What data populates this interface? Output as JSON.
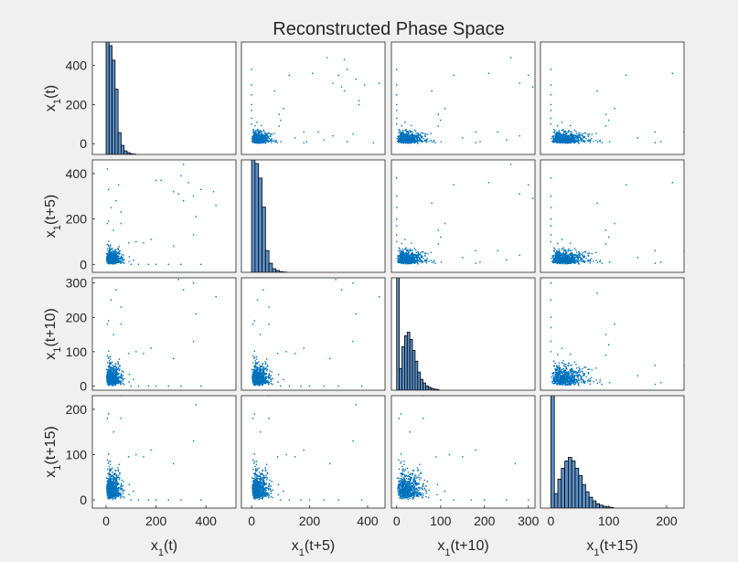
{
  "chart_data": {
    "type": "scatter-matrix",
    "title": "Reconstructed Phase Space",
    "variables": [
      {
        "base": "x",
        "sub": "1",
        "suffix": "(t)"
      },
      {
        "base": "x",
        "sub": "1",
        "suffix": "(t+5)"
      },
      {
        "base": "x",
        "sub": "1",
        "suffix": "(t+10)"
      },
      {
        "base": "x",
        "sub": "1",
        "suffix": "(t+15)"
      }
    ],
    "ranges": [
      [
        -55,
        520
      ],
      [
        -35,
        460
      ],
      [
        -12,
        315
      ],
      [
        -18,
        230
      ]
    ],
    "x_ticks": [
      [
        0,
        200,
        400
      ],
      [
        0,
        200,
        400
      ],
      [
        0,
        100,
        200,
        300
      ],
      [
        0,
        100,
        200
      ]
    ],
    "y_ticks": [
      [
        0,
        200,
        400
      ],
      [
        0,
        200,
        400
      ],
      [
        0,
        100,
        200,
        300
      ],
      [
        0,
        100,
        200
      ]
    ],
    "point_color": "#0072bd",
    "bar_color": "#5b8fc7",
    "outlier_points": [
      [
        310,
        440
      ],
      [
        290,
        310
      ],
      [
        270,
        320
      ],
      [
        380,
        330
      ],
      [
        350,
        300
      ],
      [
        360,
        210
      ],
      [
        430,
        320
      ],
      [
        330,
        360
      ],
      [
        300,
        390
      ],
      [
        200,
        370
      ],
      [
        220,
        370
      ],
      [
        350,
        130
      ],
      [
        310,
        280
      ],
      [
        440,
        260
      ],
      [
        270,
        80
      ],
      [
        180,
        110
      ],
      [
        150,
        95
      ],
      [
        120,
        100
      ],
      [
        90,
        95
      ],
      [
        60,
        180
      ],
      [
        10,
        190
      ],
      [
        5,
        180
      ],
      [
        30,
        150
      ],
      [
        100,
        0
      ],
      [
        130,
        0
      ],
      [
        170,
        0
      ],
      [
        200,
        0
      ],
      [
        250,
        0
      ],
      [
        300,
        0
      ],
      [
        380,
        0
      ],
      [
        50,
        350
      ],
      [
        40,
        280
      ],
      [
        60,
        230
      ],
      [
        20,
        250
      ],
      [
        10,
        330
      ],
      [
        5,
        420
      ]
    ],
    "histograms": [
      {
        "bin_width": 12,
        "counts": [
          900,
          300,
          260,
          180,
          60,
          25,
          10,
          5,
          2,
          1
        ]
      },
      {
        "bin_width": 12,
        "counts": [
          900,
          300,
          260,
          180,
          60,
          25,
          10,
          5,
          2,
          1
        ]
      },
      {
        "bin_width": 6,
        "counts": [
          900,
          60,
          120,
          150,
          160,
          140,
          110,
          80,
          50,
          30,
          20,
          12,
          8,
          5,
          3,
          2
        ]
      },
      {
        "bin_width": 6,
        "counts": [
          900,
          40,
          80,
          110,
          130,
          140,
          130,
          110,
          90,
          65,
          45,
          30,
          20,
          12,
          8,
          5,
          3,
          2
        ]
      }
    ]
  }
}
